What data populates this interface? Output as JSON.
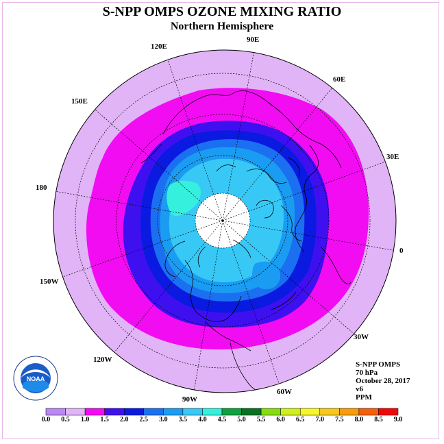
{
  "title": "S-NPP OMPS OZONE MIXING RATIO",
  "subtitle": "Northern Hemisphere",
  "projection": "polar-stereographic-north",
  "longitude_labels": [
    "90E",
    "60E",
    "30E",
    "0",
    "30W",
    "60W",
    "90W",
    "120W",
    "150W",
    "180",
    "150E",
    "120E"
  ],
  "info": {
    "instrument": "S-NPP OMPS",
    "level": "70 hPa",
    "date": "October 28, 2017",
    "version": "v6",
    "units": "PPM"
  },
  "logo_text": "NOAA",
  "logo_ring_text": "NATIONAL OCEANIC AND ATMOSPHERIC ADMINISTRATION · U.S. DEPARTMENT OF COMMERCE",
  "colorbar": {
    "ticks": [
      "0.0",
      "0.5",
      "1.0",
      "1.5",
      "2.0",
      "2.5",
      "3.0",
      "3.5",
      "4.0",
      "4.5",
      "5.0",
      "5.5",
      "6.0",
      "6.5",
      "7.0",
      "7.5",
      "8.0",
      "8.5",
      "9.0"
    ],
    "colors": [
      "#bb88f2",
      "#e0b4f6",
      "#f20cf2",
      "#3e10f0",
      "#0a1ae0",
      "#1a70f0",
      "#1a9cf2",
      "#38c8f6",
      "#34f0dc",
      "#10a040",
      "#0a7024",
      "#86dc10",
      "#cff01e",
      "#f6f62a",
      "#f6c81e",
      "#f69c0e",
      "#f2600e",
      "#f00808",
      "#8a5a32"
    ]
  },
  "field_colors": {
    "outer": "#e0b4f6",
    "ring_magenta": "#f20cf2",
    "ring_dark_blue": "#3e10f0",
    "ring_blue": "#0a1ae0",
    "ring_mid_blue": "#1a70f0",
    "ring_light_blue": "#1a9cf2",
    "core_cyan": "#38c8f6",
    "high_teal": "#34f0dc",
    "no_data": "#ffffff"
  }
}
